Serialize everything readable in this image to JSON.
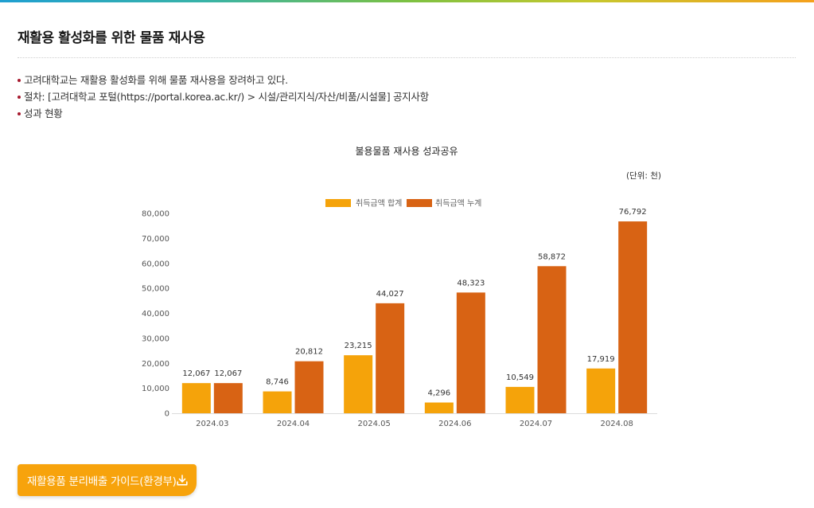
{
  "header": {
    "title": "재활용 활성화를 위한 물품 재사용"
  },
  "intro": {
    "items": [
      "고려대학교는 재활용 활성화를 위해 물품 재사용을 장려하고 있다.",
      "절차: [고려대학교 포털(https://portal.korea.ac.kr/) > 시설/관리지식/자산/비품/시설물] 공지사항",
      "성과 현황"
    ]
  },
  "colors": {
    "accent": "#f7a30c",
    "bullet": "#a6192e"
  },
  "chart_data": {
    "type": "bar",
    "title": "불용물품 재사용 성과공유",
    "unit_note": "(단위: 천)",
    "categories": [
      "2024.03",
      "2024.04",
      "2024.05",
      "2024.06",
      "2024.07",
      "2024.08"
    ],
    "series": [
      {
        "name": "취득금액 합계",
        "color": "#f5a30a",
        "values": [
          12067,
          8746,
          23215,
          4296,
          10549,
          17919
        ]
      },
      {
        "name": "취득금액 누계",
        "color": "#d86314",
        "values": [
          12067,
          20812,
          44027,
          48323,
          58872,
          76792
        ]
      }
    ],
    "ylim": [
      0,
      80000
    ],
    "yticks": [
      0,
      10000,
      20000,
      30000,
      40000,
      50000,
      60000,
      70000,
      80000
    ],
    "grid": false,
    "legend": "top-center",
    "data_labels": true
  },
  "download_button": {
    "label": "재활용품 분리배출 가이드(환경부)",
    "icon": "download-icon"
  }
}
